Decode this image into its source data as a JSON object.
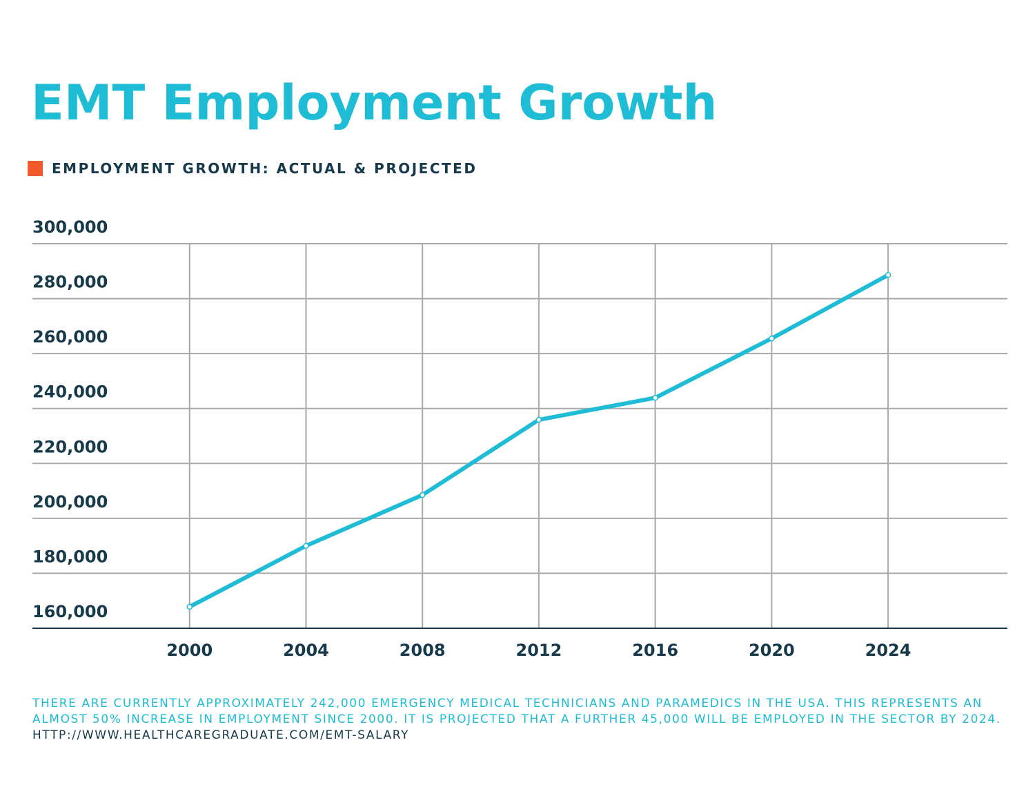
{
  "chart_data": {
    "type": "line",
    "title": "EMT Employment Growth",
    "title_color": "#1fbcd6",
    "x": [
      2000,
      2004,
      2008,
      2012,
      2016,
      2020,
      2024
    ],
    "series": [
      {
        "name": "EMPLOYMENT GROWTH: ACTUAL & PROJECTED",
        "color": "#1fbcd6",
        "legend_color": "#f15a2b",
        "values": [
          167800,
          190000,
          208500,
          235900,
          243900,
          265500,
          288600
        ]
      }
    ],
    "xlim": [
      1994.6,
      2028.1
    ],
    "xticks": [
      2000,
      2004,
      2008,
      2012,
      2016,
      2020,
      2024
    ],
    "ylim": [
      160000,
      300000
    ],
    "yticks": [
      {
        "value": 160000,
        "label": "160,000"
      },
      {
        "value": 180000,
        "label": "180,000"
      },
      {
        "value": 200000,
        "label": "200,000"
      },
      {
        "value": 220000,
        "label": "220,000"
      },
      {
        "value": 240000,
        "label": "240,000"
      },
      {
        "value": 260000,
        "label": "260,000"
      },
      {
        "value": 280000,
        "label": "280,000"
      },
      {
        "value": 300000,
        "label": "300,000"
      }
    ],
    "grid": true,
    "legend": "top-left",
    "note": "There are currently approximately 242,000 Emergency Medical Technicians and Paramedics in the USA. This represents an almost 50% increase in employment since 2000. It is projected that a further 45,000 will be employed in the sector by 2024.",
    "source": "http://www.healthcaregraduate.com/emt-salary"
  }
}
